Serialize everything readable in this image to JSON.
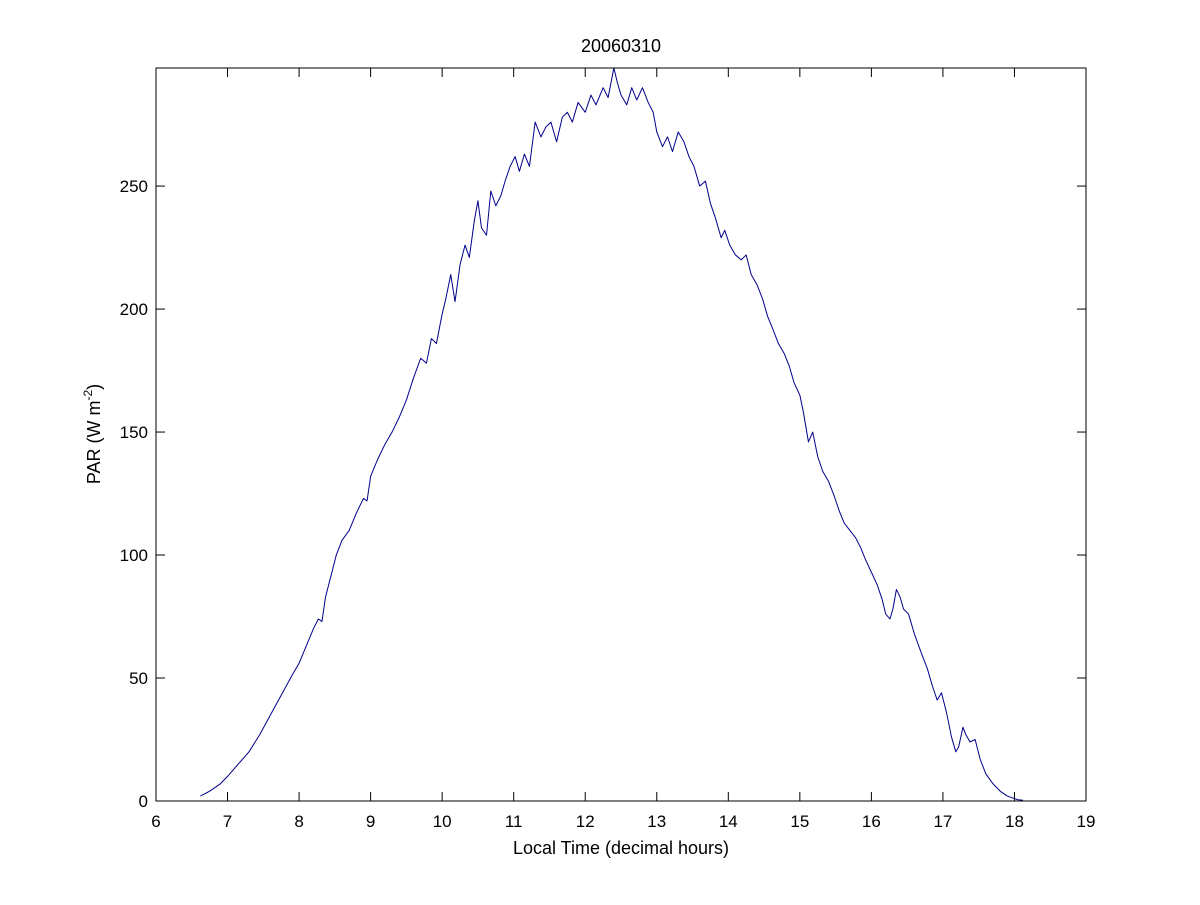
{
  "chart_data": {
    "type": "line",
    "title": "20060310",
    "xlabel": "Local Time (decimal hours)",
    "ylabel_main": "PAR (W m",
    "ylabel_sup": "-2",
    "ylabel_close": ")",
    "xlim": [
      6,
      19
    ],
    "ylim": [
      0,
      298
    ],
    "xticks": [
      6,
      7,
      8,
      9,
      10,
      11,
      12,
      13,
      14,
      15,
      16,
      17,
      18,
      19
    ],
    "xtick_labels": [
      "6",
      "7",
      "8",
      "9",
      "10",
      "11",
      "12",
      "13",
      "14",
      "15",
      "16",
      "17",
      "18",
      "19"
    ],
    "yticks": [
      0,
      50,
      100,
      150,
      200,
      250
    ],
    "ytick_labels": [
      "0",
      "50",
      "100",
      "150",
      "200",
      "250"
    ],
    "grid": false,
    "series": [
      {
        "color": "#00008b",
        "points": [
          [
            6.62,
            2
          ],
          [
            6.75,
            4
          ],
          [
            6.9,
            7
          ],
          [
            7.0,
            10
          ],
          [
            7.15,
            15
          ],
          [
            7.3,
            20
          ],
          [
            7.45,
            27
          ],
          [
            7.6,
            35
          ],
          [
            7.75,
            43
          ],
          [
            7.9,
            51
          ],
          [
            8.0,
            56
          ],
          [
            8.1,
            63
          ],
          [
            8.2,
            70
          ],
          [
            8.27,
            74
          ],
          [
            8.32,
            73
          ],
          [
            8.37,
            83
          ],
          [
            8.45,
            92
          ],
          [
            8.52,
            100
          ],
          [
            8.6,
            106
          ],
          [
            8.7,
            110
          ],
          [
            8.8,
            117
          ],
          [
            8.9,
            123
          ],
          [
            8.95,
            122
          ],
          [
            9.0,
            132
          ],
          [
            9.1,
            139
          ],
          [
            9.2,
            145
          ],
          [
            9.3,
            150
          ],
          [
            9.4,
            156
          ],
          [
            9.5,
            163
          ],
          [
            9.6,
            172
          ],
          [
            9.7,
            180
          ],
          [
            9.78,
            178
          ],
          [
            9.85,
            188
          ],
          [
            9.92,
            186
          ],
          [
            10.0,
            198
          ],
          [
            10.05,
            204
          ],
          [
            10.12,
            214
          ],
          [
            10.18,
            203
          ],
          [
            10.25,
            218
          ],
          [
            10.32,
            226
          ],
          [
            10.38,
            221
          ],
          [
            10.45,
            236
          ],
          [
            10.5,
            244
          ],
          [
            10.55,
            233
          ],
          [
            10.62,
            230
          ],
          [
            10.68,
            248
          ],
          [
            10.75,
            242
          ],
          [
            10.82,
            246
          ],
          [
            10.88,
            252
          ],
          [
            10.95,
            258
          ],
          [
            11.02,
            262
          ],
          [
            11.08,
            256
          ],
          [
            11.15,
            263
          ],
          [
            11.22,
            258
          ],
          [
            11.3,
            276
          ],
          [
            11.38,
            270
          ],
          [
            11.45,
            274
          ],
          [
            11.52,
            276
          ],
          [
            11.6,
            268
          ],
          [
            11.68,
            278
          ],
          [
            11.75,
            280
          ],
          [
            11.82,
            276
          ],
          [
            11.9,
            284
          ],
          [
            12.0,
            280
          ],
          [
            12.08,
            287
          ],
          [
            12.15,
            283
          ],
          [
            12.25,
            290
          ],
          [
            12.32,
            286
          ],
          [
            12.4,
            298
          ],
          [
            12.45,
            292
          ],
          [
            12.5,
            287
          ],
          [
            12.58,
            283
          ],
          [
            12.65,
            290
          ],
          [
            12.72,
            285
          ],
          [
            12.8,
            290
          ],
          [
            12.88,
            284
          ],
          [
            12.95,
            280
          ],
          [
            13.0,
            272
          ],
          [
            13.08,
            266
          ],
          [
            13.15,
            270
          ],
          [
            13.22,
            264
          ],
          [
            13.3,
            272
          ],
          [
            13.38,
            268
          ],
          [
            13.45,
            262
          ],
          [
            13.52,
            258
          ],
          [
            13.6,
            250
          ],
          [
            13.68,
            252
          ],
          [
            13.75,
            243
          ],
          [
            13.82,
            237
          ],
          [
            13.9,
            229
          ],
          [
            13.95,
            232
          ],
          [
            14.02,
            226
          ],
          [
            14.1,
            222
          ],
          [
            14.18,
            220
          ],
          [
            14.25,
            222
          ],
          [
            14.32,
            214
          ],
          [
            14.4,
            210
          ],
          [
            14.48,
            204
          ],
          [
            14.55,
            197
          ],
          [
            14.62,
            192
          ],
          [
            14.7,
            186
          ],
          [
            14.78,
            182
          ],
          [
            14.85,
            177
          ],
          [
            14.92,
            170
          ],
          [
            15.0,
            165
          ],
          [
            15.05,
            158
          ],
          [
            15.12,
            146
          ],
          [
            15.18,
            150
          ],
          [
            15.25,
            140
          ],
          [
            15.32,
            134
          ],
          [
            15.4,
            130
          ],
          [
            15.48,
            124
          ],
          [
            15.55,
            118
          ],
          [
            15.62,
            113
          ],
          [
            15.7,
            110
          ],
          [
            15.78,
            107
          ],
          [
            15.85,
            103
          ],
          [
            15.92,
            98
          ],
          [
            16.0,
            93
          ],
          [
            16.08,
            88
          ],
          [
            16.15,
            82
          ],
          [
            16.2,
            76
          ],
          [
            16.26,
            74
          ],
          [
            16.3,
            78
          ],
          [
            16.35,
            86
          ],
          [
            16.4,
            83
          ],
          [
            16.45,
            78
          ],
          [
            16.52,
            76
          ],
          [
            16.6,
            68
          ],
          [
            16.7,
            60
          ],
          [
            16.78,
            54
          ],
          [
            16.85,
            47
          ],
          [
            16.92,
            41
          ],
          [
            16.98,
            44
          ],
          [
            17.05,
            36
          ],
          [
            17.12,
            26
          ],
          [
            17.18,
            20
          ],
          [
            17.22,
            22
          ],
          [
            17.28,
            30
          ],
          [
            17.32,
            27
          ],
          [
            17.38,
            24
          ],
          [
            17.45,
            25
          ],
          [
            17.52,
            17
          ],
          [
            17.6,
            11
          ],
          [
            17.7,
            7
          ],
          [
            17.8,
            4
          ],
          [
            17.9,
            2
          ],
          [
            18.0,
            1
          ],
          [
            18.05,
            0.5
          ],
          [
            18.12,
            0.3
          ]
        ]
      }
    ]
  }
}
